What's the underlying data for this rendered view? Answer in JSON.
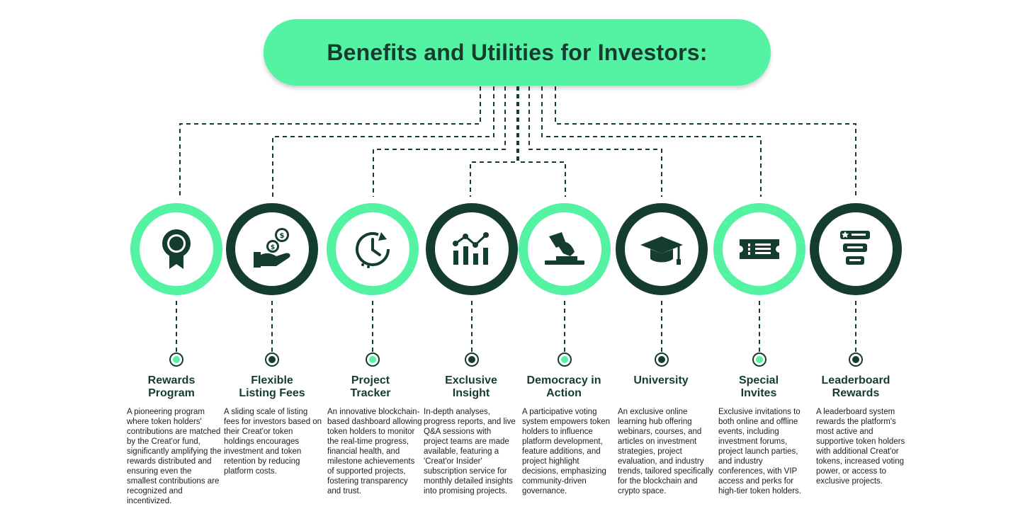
{
  "banner": {
    "title": "Benefits and Utilities for Investors:"
  },
  "items": [
    {
      "title_line1": "Rewards",
      "title_line2": "Program",
      "icon": "award-ribbon-icon",
      "accent": "#54f2a3",
      "description": "A pioneering program where token holders' contributions are matched by the Creat'or fund, significantly amplifying the rewards distributed and ensuring even the smallest contributions are recognized and incentivized."
    },
    {
      "title_line1": "Flexible",
      "title_line2": "Listing Fees",
      "icon": "hand-coins-icon",
      "accent": "#143d2d",
      "description": "A sliding scale of listing fees for investors based on their Creat'or token holdings encourages investment and token retention by reducing platform costs."
    },
    {
      "title_line1": "Project",
      "title_line2": "Tracker",
      "icon": "clock-history-icon",
      "accent": "#54f2a3",
      "description": "An innovative blockchain-based dashboard allowing token holders to monitor the real-time progress, financial health, and milestone achievements of supported projects, fostering transparency and trust."
    },
    {
      "title_line1": "Exclusive",
      "title_line2": "Insight",
      "icon": "analytics-chart-icon",
      "accent": "#143d2d",
      "description": "In-depth analyses, progress reports, and live Q&A sessions with project teams are made available, featuring a 'Creat'or Insider' subscription service for monthly detailed insights into promising projects."
    },
    {
      "title_line1": "Democracy in",
      "title_line2": "Action",
      "icon": "ballot-vote-icon",
      "accent": "#54f2a3",
      "description": "A participative voting system empowers token holders to influence platform development, feature additions, and project highlight decisions, emphasizing community-driven governance."
    },
    {
      "title_line1": "University",
      "title_line2": "",
      "icon": "graduation-cap-icon",
      "accent": "#143d2d",
      "description": "An exclusive online learning hub offering webinars, courses, and articles on investment strategies, project evaluation, and industry trends, tailored specifically for the blockchain and crypto space."
    },
    {
      "title_line1": "Special",
      "title_line2": "Invites",
      "icon": "ticket-icon",
      "accent": "#54f2a3",
      "description": "Exclusive invitations to both online and offline events, including investment forums, project launch parties, and industry conferences, with VIP access and perks for high-tier token holders."
    },
    {
      "title_line1": "Leaderboard",
      "title_line2": "Rewards",
      "icon": "leaderboard-icon",
      "accent": "#143d2d",
      "description": "A leaderboard system rewards the platform's most active and supportive token holders with additional Creat'or tokens, increased voting power, or access to exclusive projects."
    }
  ]
}
